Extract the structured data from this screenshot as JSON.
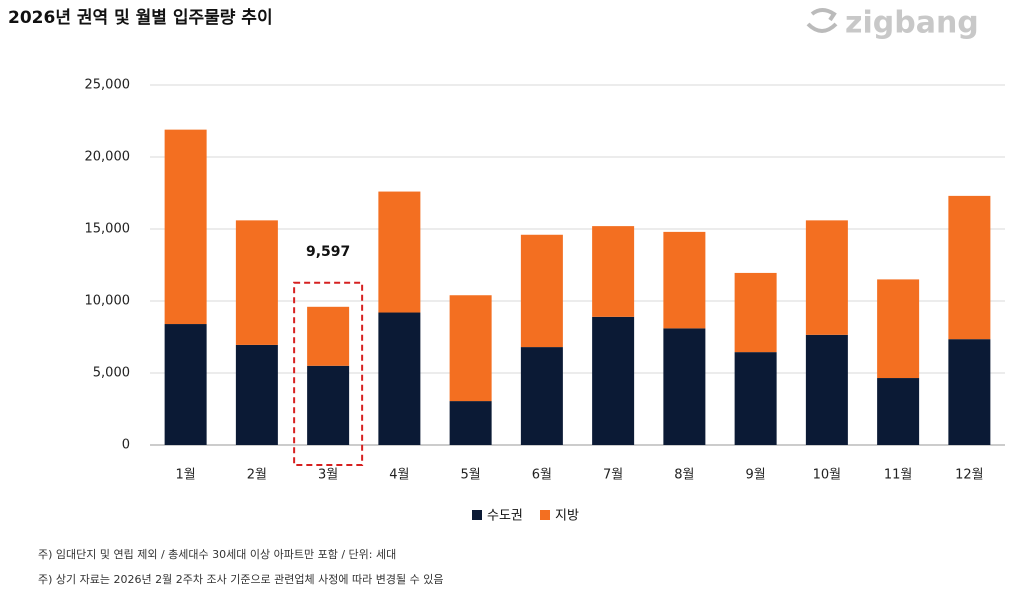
{
  "chart_data": {
    "type": "stacked-bar",
    "title": "2026년 권역 및 월별 입주물량 추이",
    "brand": "zigbang",
    "categories": [
      "1월",
      "2월",
      "3월",
      "4월",
      "5월",
      "6월",
      "7월",
      "8월",
      "9월",
      "10월",
      "11월",
      "12월"
    ],
    "series": [
      {
        "name": "수도권",
        "color": "#0b1a35",
        "values": [
          8400,
          6950,
          5500,
          9200,
          3050,
          6800,
          8900,
          8100,
          6450,
          7650,
          4650,
          7350
        ]
      },
      {
        "name": "지방",
        "color": "#f36f21",
        "values": [
          13500,
          8650,
          4097,
          8400,
          7350,
          7800,
          6300,
          6700,
          5500,
          7950,
          6850,
          9950
        ]
      }
    ],
    "annotations": [
      {
        "category": "3월",
        "label": "9,597"
      }
    ],
    "ylim": [
      0,
      25000
    ],
    "yticks": [
      0,
      {
        "value": 5000,
        "label": "5,000"
      },
      {
        "value": 10000,
        "label": "10,000"
      },
      {
        "value": 15000,
        "label": "15,000"
      },
      {
        "value": 20000,
        "label": "20,000"
      },
      {
        "value": 25000,
        "label": "25,000"
      }
    ],
    "grid": true,
    "notes": [
      "주) 임대단지 및 연립 제외 / 총세대수 30세대 이상 아파트만 포함 / 단위: 세대",
      "주) 상기 자료는 2026년 2월 2주차 조사 기준으로 관련업체 사정에 따라 변경될 수 있음"
    ]
  }
}
